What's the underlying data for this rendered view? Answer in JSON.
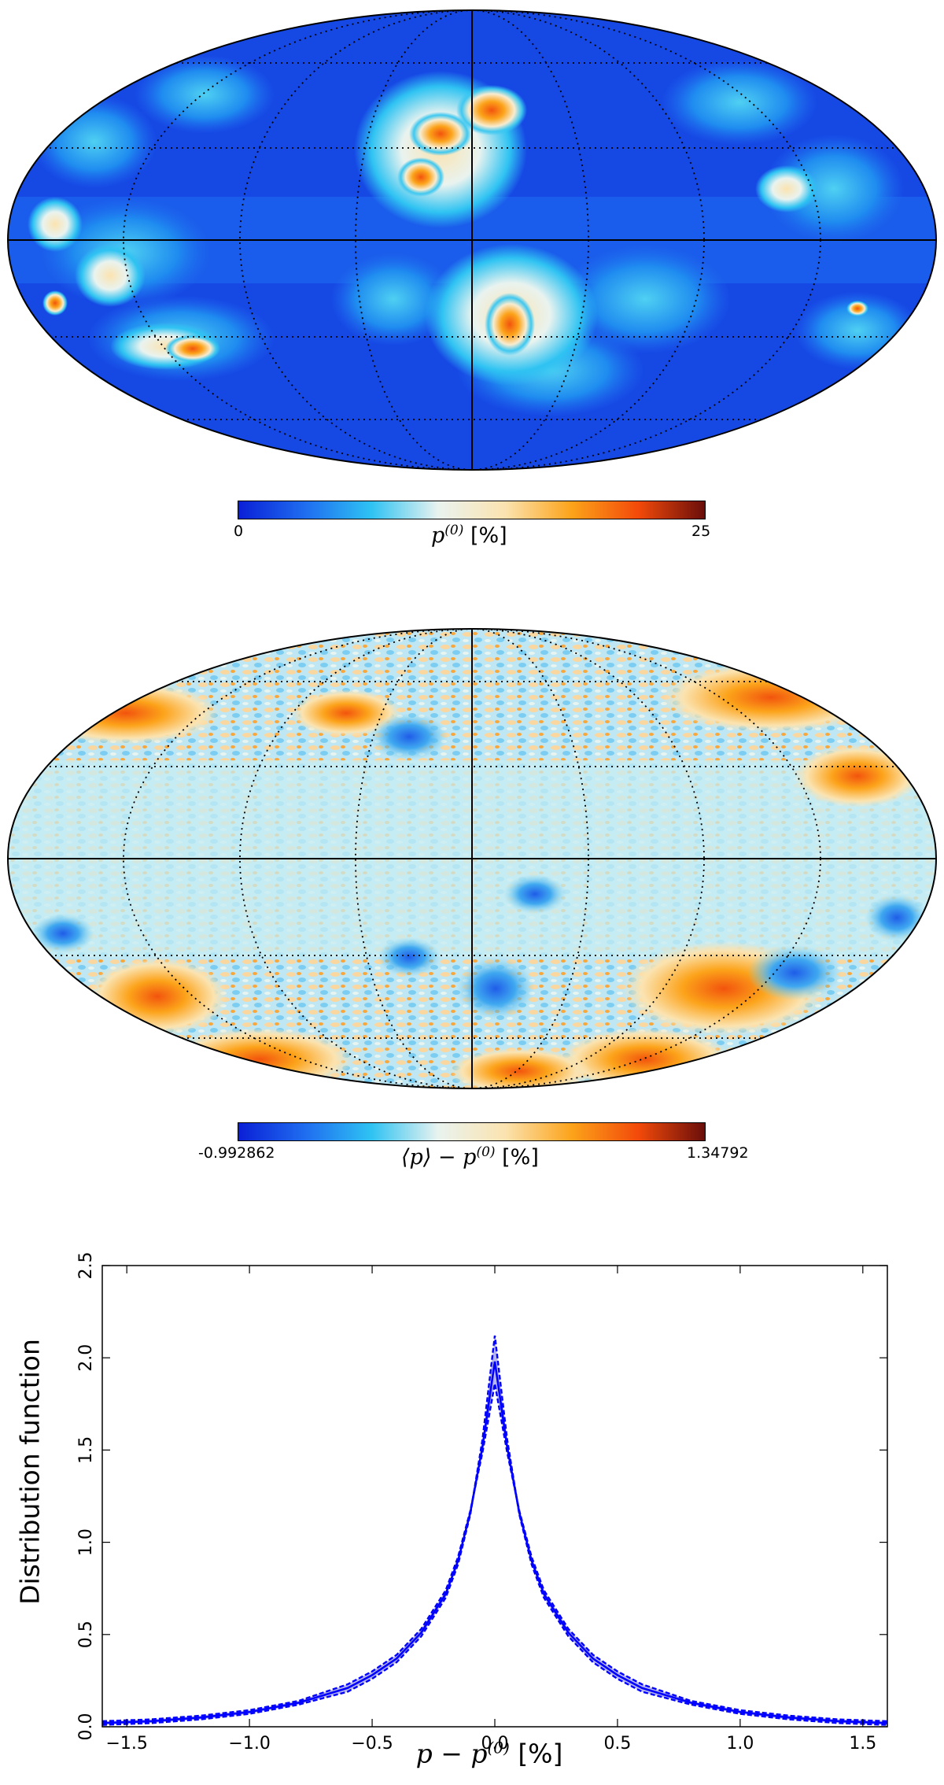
{
  "panels": [
    {
      "colorbar": {
        "min_label": "0",
        "max_label": "25",
        "title_math": "p",
        "title_sup": "(0)",
        "title_unit": "[%]",
        "colors": [
          "#0a1fd6",
          "#1f6df0",
          "#2fc3f2",
          "#e9f3ef",
          "#fbe3b0",
          "#fca31a",
          "#f24a0a",
          "#6a0e0a"
        ]
      }
    },
    {
      "colorbar": {
        "min_label": "-0.992862",
        "max_label": "1.34792",
        "title_math": "⟨p⟩ − p",
        "title_sup": "(0)",
        "title_unit": "[%]",
        "colors": [
          "#0a1fd6",
          "#1f6df0",
          "#2fc3f2",
          "#e9f3ef",
          "#fbe3b0",
          "#fca31a",
          "#f24a0a",
          "#6a0e0a"
        ]
      }
    }
  ],
  "chart_data": {
    "type": "line",
    "title": "",
    "xlabel_math": "p − p",
    "xlabel_sup": "(0)",
    "xlabel_unit": "[%]",
    "ylabel": "Distribution function",
    "xlim": [
      -1.6,
      1.6
    ],
    "ylim": [
      0.0,
      2.5
    ],
    "x_ticks": [
      -1.5,
      -1.0,
      -0.5,
      0.0,
      0.5,
      1.0,
      1.5
    ],
    "x_tick_labels": [
      "−1.5",
      "−1.0",
      "−0.5",
      "0.0",
      "0.5",
      "1.0",
      "1.5"
    ],
    "y_ticks": [
      0.0,
      0.5,
      1.0,
      1.5,
      2.0,
      2.5
    ],
    "y_tick_labels": [
      "0.0",
      "0.5",
      "1.0",
      "1.5",
      "2.0",
      "2.5"
    ],
    "grid": false,
    "line_color": "#0000ff",
    "band_color": "#b7b7f0",
    "x": [
      -1.6,
      -1.4,
      -1.2,
      -1.0,
      -0.8,
      -0.6,
      -0.5,
      -0.4,
      -0.3,
      -0.2,
      -0.15,
      -0.1,
      -0.05,
      0.0,
      0.05,
      0.1,
      0.15,
      0.2,
      0.3,
      0.4,
      0.5,
      0.6,
      0.8,
      1.0,
      1.2,
      1.4,
      1.6
    ],
    "series": [
      {
        "values": [
          0.02,
          0.03,
          0.05,
          0.08,
          0.13,
          0.21,
          0.28,
          0.37,
          0.51,
          0.72,
          0.9,
          1.16,
          1.52,
          1.98,
          1.52,
          1.16,
          0.9,
          0.72,
          0.51,
          0.37,
          0.28,
          0.21,
          0.13,
          0.08,
          0.05,
          0.03,
          0.02
        ]
      },
      {
        "values": [
          0.01,
          0.02,
          0.04,
          0.07,
          0.12,
          0.19,
          0.26,
          0.35,
          0.49,
          0.7,
          0.88,
          1.15,
          1.56,
          2.12,
          1.56,
          1.15,
          0.88,
          0.7,
          0.49,
          0.35,
          0.26,
          0.19,
          0.12,
          0.07,
          0.04,
          0.02,
          0.01
        ]
      },
      {
        "values": [
          0.03,
          0.04,
          0.06,
          0.09,
          0.14,
          0.23,
          0.3,
          0.39,
          0.53,
          0.74,
          0.92,
          1.17,
          1.49,
          1.86,
          1.49,
          1.17,
          0.92,
          0.74,
          0.53,
          0.39,
          0.3,
          0.23,
          0.14,
          0.09,
          0.06,
          0.04,
          0.03
        ]
      }
    ]
  }
}
